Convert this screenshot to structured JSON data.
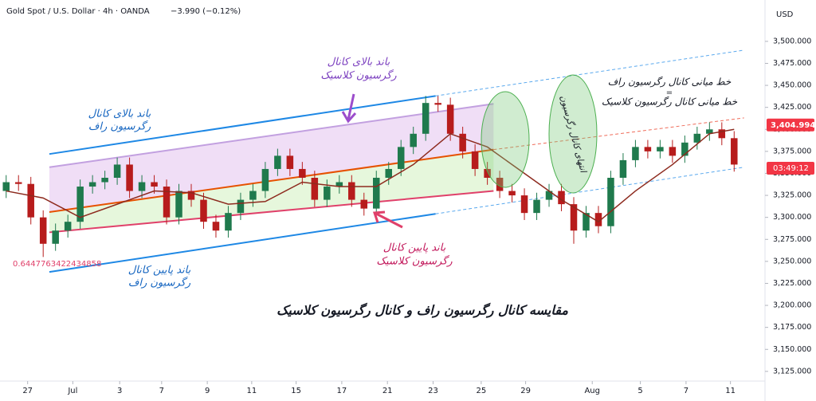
{
  "chart_data": {
    "type": "candlestick",
    "title": "Gold Spot / U.S. Dollar · 4h · OANDA",
    "change": "−3.990 (−0.12%)",
    "currency": "USD",
    "ylim": [
      3114,
      3547
    ],
    "xlim": [
      -0.5,
      61.5
    ],
    "yticks": [
      {
        "value": 3125,
        "label": "3,125.000"
      },
      {
        "value": 3150,
        "label": "3,150.000"
      },
      {
        "value": 3175,
        "label": "3,175.000"
      },
      {
        "value": 3200,
        "label": "3,200.000"
      },
      {
        "value": 3225,
        "label": "3,225.000"
      },
      {
        "value": 3250,
        "label": "3,250.000"
      },
      {
        "value": 3275,
        "label": "3,275.000"
      },
      {
        "value": 3300,
        "label": "3,300.000"
      },
      {
        "value": 3325,
        "label": "3,325.000"
      },
      {
        "value": 3350,
        "label": "3,350.000"
      },
      {
        "value": 3375,
        "label": "3,375.000"
      },
      {
        "value": 3400,
        "label": "3,400.000"
      },
      {
        "value": 3425,
        "label": "3,425.000"
      },
      {
        "value": 3450,
        "label": "3,450.000"
      },
      {
        "value": 3475,
        "label": "3,475.000"
      },
      {
        "value": 3500,
        "label": "3,500.000"
      }
    ],
    "xticks": [
      {
        "value": 1.74,
        "label": "27"
      },
      {
        "value": 5.4,
        "label": "Jul"
      },
      {
        "value": 9.2,
        "label": "3"
      },
      {
        "value": 12.6,
        "label": "7"
      },
      {
        "value": 16.3,
        "label": "9"
      },
      {
        "value": 19.9,
        "label": "11"
      },
      {
        "value": 23.5,
        "label": "15"
      },
      {
        "value": 27.2,
        "label": "17"
      },
      {
        "value": 30.9,
        "label": "21"
      },
      {
        "value": 34.6,
        "label": "23"
      },
      {
        "value": 38.5,
        "label": "25"
      },
      {
        "value": 42.1,
        "label": "29"
      },
      {
        "value": 47.5,
        "label": "Aug"
      },
      {
        "value": 51.4,
        "label": "5"
      },
      {
        "value": 55.1,
        "label": "7"
      },
      {
        "value": 58.7,
        "label": "11"
      }
    ],
    "up_color": "#1f7a4d",
    "down_color": "#b71c1c",
    "open": [
      3330,
      3340,
      3338,
      3300,
      3270,
      3285,
      3295,
      3335,
      3340,
      3345,
      3360,
      3330,
      3340,
      3335,
      3300,
      3330,
      3320,
      3295,
      3285,
      3305,
      3320,
      3330,
      3355,
      3370,
      3355,
      3345,
      3320,
      3335,
      3340,
      3320,
      3310,
      3345,
      3355,
      3380,
      3395,
      3430,
      3428,
      3395,
      3375,
      3355,
      3345,
      3330,
      3325,
      3305,
      3320,
      3330,
      3315,
      3285,
      3305,
      3290,
      3345,
      3365,
      3380,
      3375,
      3380,
      3370,
      3385,
      3395,
      3400,
      3390
    ],
    "high": [
      3348,
      3348,
      3346,
      3308,
      3293,
      3303,
      3343,
      3348,
      3353,
      3368,
      3368,
      3348,
      3348,
      3343,
      3338,
      3338,
      3328,
      3303,
      3313,
      3328,
      3338,
      3363,
      3378,
      3378,
      3363,
      3353,
      3343,
      3348,
      3348,
      3328,
      3353,
      3363,
      3388,
      3403,
      3438,
      3438,
      3436,
      3403,
      3383,
      3363,
      3353,
      3338,
      3333,
      3328,
      3338,
      3338,
      3323,
      3313,
      3313,
      3353,
      3373,
      3388,
      3388,
      3388,
      3388,
      3393,
      3403,
      3408,
      3408,
      3398
    ],
    "low": [
      3322,
      3330,
      3292,
      3255,
      3262,
      3277,
      3287,
      3327,
      3332,
      3337,
      3322,
      3322,
      3327,
      3292,
      3292,
      3312,
      3287,
      3277,
      3277,
      3297,
      3312,
      3322,
      3347,
      3347,
      3337,
      3312,
      3312,
      3327,
      3312,
      3302,
      3302,
      3337,
      3347,
      3372,
      3387,
      3420,
      3387,
      3367,
      3347,
      3337,
      3322,
      3317,
      3297,
      3297,
      3312,
      3307,
      3270,
      3277,
      3282,
      3282,
      3337,
      3357,
      3367,
      3367,
      3362,
      3362,
      3377,
      3387,
      3382,
      3352
    ],
    "close": [
      3340,
      3338,
      3300,
      3270,
      3285,
      3295,
      3335,
      3340,
      3345,
      3360,
      3330,
      3340,
      3335,
      3300,
      3330,
      3320,
      3295,
      3285,
      3305,
      3320,
      3330,
      3355,
      3370,
      3355,
      3345,
      3320,
      3335,
      3340,
      3320,
      3310,
      3345,
      3355,
      3380,
      3395,
      3430,
      3428,
      3395,
      3375,
      3355,
      3345,
      3330,
      3325,
      3305,
      3320,
      3330,
      3315,
      3285,
      3305,
      3290,
      3345,
      3365,
      3380,
      3375,
      3380,
      3370,
      3385,
      3395,
      3400,
      3390,
      3360
    ],
    "ma": {
      "color": "#8d2a1e",
      "x": [
        0,
        3,
        6,
        9,
        12,
        15,
        18,
        21,
        24,
        27,
        30,
        33,
        36,
        39,
        42,
        45,
        48,
        51,
        54,
        57,
        59
      ],
      "values": [
        3330,
        3322,
        3300,
        3315,
        3330,
        3328,
        3315,
        3318,
        3340,
        3335,
        3335,
        3360,
        3395,
        3380,
        3350,
        3320,
        3295,
        3330,
        3360,
        3395,
        3400
      ]
    },
    "bands": [
      {
        "color": "#e6c8f0",
        "x": [
          3.5,
          39.5
        ],
        "top": [
          3357,
          3429
        ],
        "bottom": [
          3306,
          3377
        ]
      },
      {
        "color": "#d6f2c4",
        "x": [
          3.5,
          39.5
        ],
        "top": [
          3306,
          3377
        ],
        "bottom": [
          3283,
          3330
        ]
      }
    ],
    "channels": [
      {
        "color": "#1e88e5",
        "dash": false,
        "x": [
          3.5,
          34.8
        ],
        "values": [
          3372,
          3438
        ]
      },
      {
        "color": "#5aa9ee",
        "dash": true,
        "x": [
          34.8,
          59.8
        ],
        "values": [
          3438,
          3490
        ]
      },
      {
        "color": "#1e88e5",
        "dash": false,
        "x": [
          3.5,
          34.8
        ],
        "values": [
          3238,
          3304
        ]
      },
      {
        "color": "#5aa9ee",
        "dash": true,
        "x": [
          34.8,
          59.8
        ],
        "values": [
          3304,
          3357
        ]
      },
      {
        "color": "#e65100",
        "dash": false,
        "x": [
          3.5,
          39.5
        ],
        "values": [
          3306,
          3377
        ]
      },
      {
        "color": "#ef6c5a",
        "dash": true,
        "x": [
          39.5,
          59.8
        ],
        "values": [
          3377,
          3413
        ]
      },
      {
        "color": "#c2a0e0",
        "dash": false,
        "x": [
          3.5,
          39.5
        ],
        "values": [
          3357,
          3429
        ]
      },
      {
        "color": "#e0406a",
        "dash": false,
        "x": [
          3.5,
          39.5
        ],
        "values": [
          3283,
          3330
        ]
      }
    ],
    "last_price": {
      "value": 3404.994,
      "label": "3,404.994"
    },
    "countdown": "03:49:12",
    "level_label": "0.6447763422434858",
    "annotations": {
      "upper_classic": [
        "باند بالای کانال",
        "رگرسیون کلاسیک"
      ],
      "upper_raff": [
        "باند بالای کانال",
        "رگرسیون راف"
      ],
      "lower_classic": [
        "باند پایین کانال",
        "رگرسیون کلاسیک"
      ],
      "lower_raff": [
        "باند پایین کانال",
        "رگرسیون راف"
      ],
      "midline": [
        "خط میانی کانال رگرسیون راف",
        "=",
        "خط میانی کانال رگرسیون کلاسیک"
      ],
      "ellipse": "انتهای کانال رگرسیون",
      "headline": "مقایسه کانال رگرسیون راف و کانال رگرسیون کلاسیک"
    }
  }
}
